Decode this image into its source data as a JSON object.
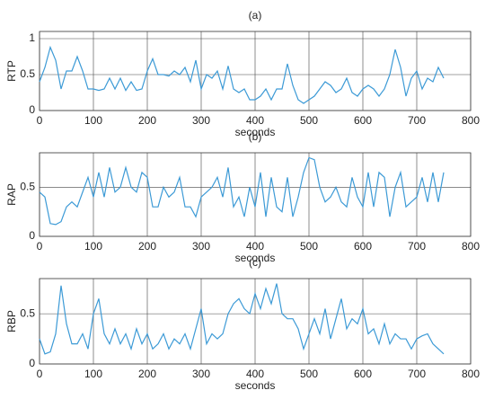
{
  "chart_data": [
    {
      "type": "line",
      "title": "(a)",
      "x_label": "seconds",
      "y_label": "RTP",
      "x": [
        0,
        10,
        20,
        30,
        40,
        50,
        60,
        70,
        80,
        90,
        100,
        110,
        120,
        130,
        140,
        150,
        160,
        170,
        180,
        190,
        200,
        210,
        220,
        230,
        240,
        250,
        260,
        270,
        280,
        290,
        300,
        310,
        320,
        330,
        340,
        350,
        360,
        370,
        380,
        390,
        400,
        410,
        420,
        430,
        440,
        450,
        460,
        470,
        480,
        490,
        500,
        510,
        520,
        530,
        540,
        550,
        560,
        570,
        580,
        590,
        600,
        610,
        620,
        630,
        640,
        650,
        660,
        670,
        680,
        690,
        700,
        710,
        720,
        730,
        740,
        750
      ],
      "series": [
        {
          "name": "RTP",
          "color": "#3c9ad6",
          "values": [
            0.4,
            0.6,
            0.88,
            0.7,
            0.3,
            0.55,
            0.55,
            0.75,
            0.55,
            0.3,
            0.3,
            0.28,
            0.3,
            0.45,
            0.3,
            0.45,
            0.28,
            0.4,
            0.28,
            0.3,
            0.55,
            0.72,
            0.5,
            0.5,
            0.48,
            0.55,
            0.5,
            0.6,
            0.4,
            0.7,
            0.3,
            0.5,
            0.45,
            0.55,
            0.3,
            0.62,
            0.3,
            0.25,
            0.3,
            0.15,
            0.15,
            0.2,
            0.3,
            0.15,
            0.3,
            0.3,
            0.65,
            0.35,
            0.15,
            0.1,
            0.15,
            0.2,
            0.3,
            0.4,
            0.35,
            0.25,
            0.3,
            0.45,
            0.25,
            0.2,
            0.3,
            0.35,
            0.3,
            0.2,
            0.3,
            0.5,
            0.85,
            0.6,
            0.2,
            0.45,
            0.55,
            0.3,
            0.45,
            0.4,
            0.6,
            0.45
          ]
        }
      ],
      "xlim": [
        0,
        800
      ],
      "xticks": [
        0,
        100,
        200,
        300,
        400,
        500,
        600,
        700,
        800
      ],
      "ylim": [
        0,
        1.1
      ],
      "yticks": [
        0,
        0.5,
        1
      ],
      "grid": true
    },
    {
      "type": "line",
      "title": "(b)",
      "x_label": "seconds",
      "y_label": "RAP",
      "x": [
        0,
        10,
        20,
        30,
        40,
        50,
        60,
        70,
        80,
        90,
        100,
        110,
        120,
        130,
        140,
        150,
        160,
        170,
        180,
        190,
        200,
        210,
        220,
        230,
        240,
        250,
        260,
        270,
        280,
        290,
        300,
        310,
        320,
        330,
        340,
        350,
        360,
        370,
        380,
        390,
        400,
        410,
        420,
        430,
        440,
        450,
        460,
        470,
        480,
        490,
        500,
        510,
        520,
        530,
        540,
        550,
        560,
        570,
        580,
        590,
        600,
        610,
        620,
        630,
        640,
        650,
        660,
        670,
        680,
        690,
        700,
        710,
        720,
        730,
        740,
        750
      ],
      "series": [
        {
          "name": "RAP",
          "color": "#3c9ad6",
          "values": [
            0.45,
            0.4,
            0.13,
            0.12,
            0.15,
            0.3,
            0.35,
            0.3,
            0.45,
            0.6,
            0.4,
            0.65,
            0.4,
            0.7,
            0.45,
            0.5,
            0.7,
            0.5,
            0.45,
            0.65,
            0.6,
            0.3,
            0.3,
            0.5,
            0.4,
            0.45,
            0.6,
            0.3,
            0.3,
            0.2,
            0.4,
            0.45,
            0.5,
            0.6,
            0.4,
            0.7,
            0.3,
            0.4,
            0.2,
            0.5,
            0.3,
            0.65,
            0.2,
            0.6,
            0.3,
            0.25,
            0.6,
            0.2,
            0.4,
            0.65,
            0.8,
            0.78,
            0.5,
            0.35,
            0.4,
            0.5,
            0.35,
            0.3,
            0.6,
            0.4,
            0.3,
            0.65,
            0.3,
            0.65,
            0.6,
            0.2,
            0.5,
            0.65,
            0.3,
            0.35,
            0.4,
            0.6,
            0.35,
            0.65,
            0.35,
            0.65
          ]
        }
      ],
      "xlim": [
        0,
        800
      ],
      "xticks": [
        0,
        100,
        200,
        300,
        400,
        500,
        600,
        700,
        800
      ],
      "ylim": [
        0,
        0.85
      ],
      "yticks": [
        0,
        0.5
      ],
      "grid": true
    },
    {
      "type": "line",
      "title": "(c)",
      "x_label": "seconds",
      "y_label": "RBP",
      "x": [
        0,
        10,
        20,
        30,
        40,
        50,
        60,
        70,
        80,
        90,
        100,
        110,
        120,
        130,
        140,
        150,
        160,
        170,
        180,
        190,
        200,
        210,
        220,
        230,
        240,
        250,
        260,
        270,
        280,
        290,
        300,
        310,
        320,
        330,
        340,
        350,
        360,
        370,
        380,
        390,
        400,
        410,
        420,
        430,
        440,
        450,
        460,
        470,
        480,
        490,
        500,
        510,
        520,
        530,
        540,
        550,
        560,
        570,
        580,
        590,
        600,
        610,
        620,
        630,
        640,
        650,
        660,
        670,
        680,
        690,
        700,
        710,
        720,
        730,
        740,
        750
      ],
      "series": [
        {
          "name": "RBP",
          "color": "#3c9ad6",
          "values": [
            0.25,
            0.1,
            0.12,
            0.3,
            0.78,
            0.4,
            0.2,
            0.2,
            0.3,
            0.15,
            0.5,
            0.65,
            0.3,
            0.2,
            0.35,
            0.2,
            0.3,
            0.15,
            0.35,
            0.2,
            0.3,
            0.15,
            0.2,
            0.3,
            0.15,
            0.25,
            0.2,
            0.3,
            0.15,
            0.35,
            0.55,
            0.2,
            0.3,
            0.25,
            0.3,
            0.5,
            0.6,
            0.65,
            0.55,
            0.5,
            0.7,
            0.55,
            0.75,
            0.6,
            0.8,
            0.5,
            0.45,
            0.45,
            0.35,
            0.15,
            0.3,
            0.45,
            0.3,
            0.55,
            0.25,
            0.45,
            0.65,
            0.35,
            0.45,
            0.4,
            0.55,
            0.3,
            0.35,
            0.2,
            0.4,
            0.2,
            0.3,
            0.25,
            0.25,
            0.15,
            0.25,
            0.28,
            0.3,
            0.2,
            0.15,
            0.1
          ]
        }
      ],
      "xlim": [
        0,
        800
      ],
      "xticks": [
        0,
        100,
        200,
        300,
        400,
        500,
        600,
        700,
        800
      ],
      "ylim": [
        0,
        0.85
      ],
      "yticks": [
        0,
        0.5
      ],
      "grid": true
    }
  ]
}
